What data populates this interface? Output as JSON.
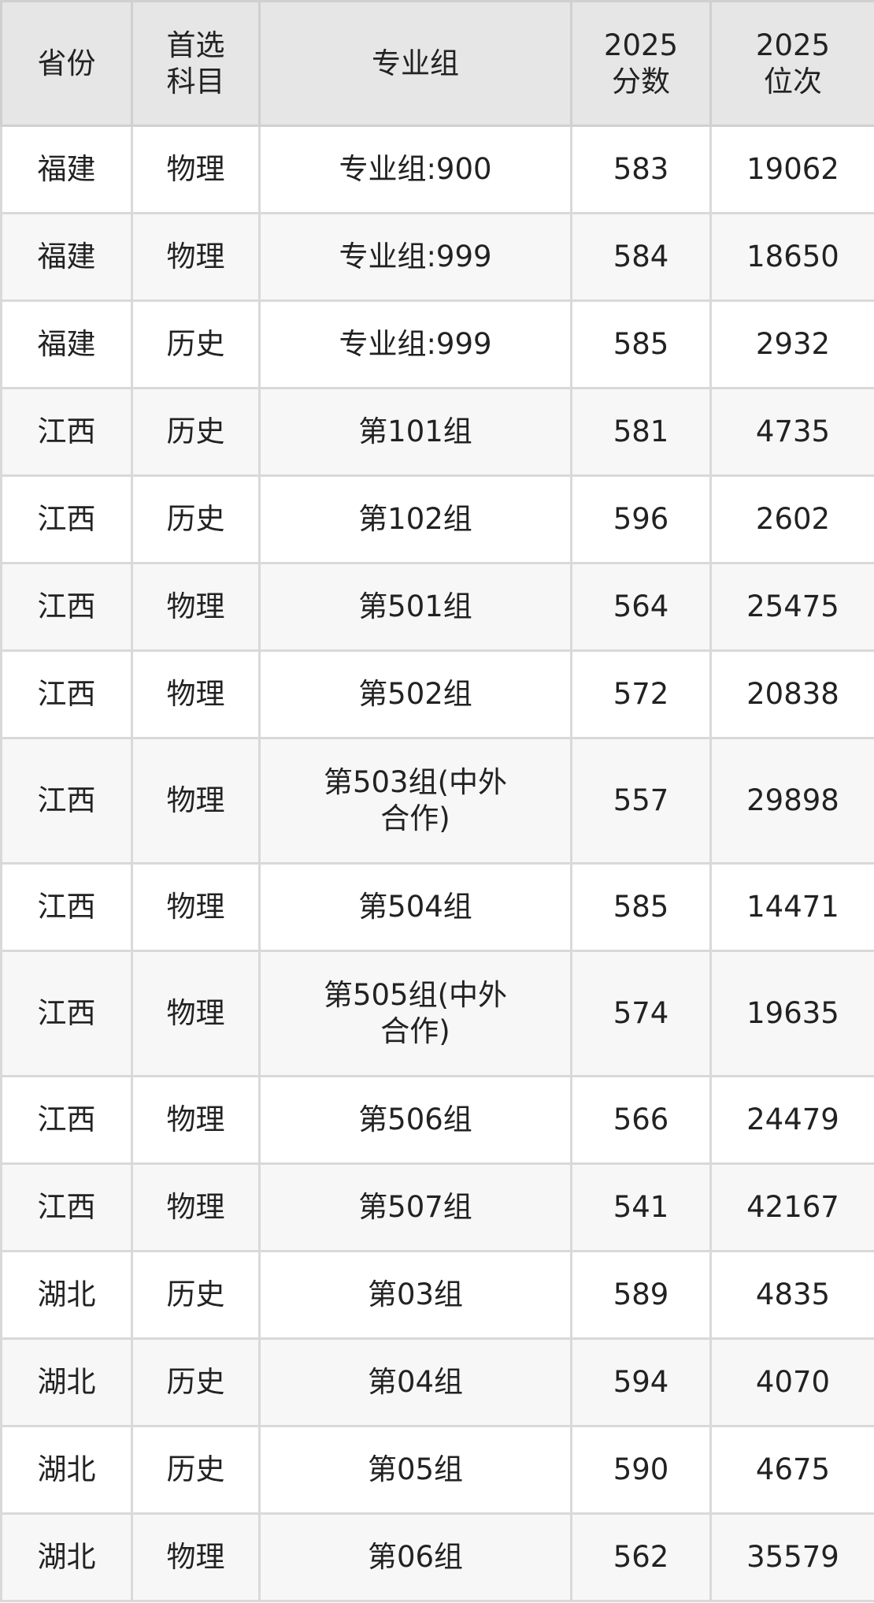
{
  "headers": [
    "省份",
    "首选科目",
    "专业组",
    "2025分数",
    "2025位次"
  ],
  "header_lines": [
    [
      "省份"
    ],
    [
      "首选",
      "科目"
    ],
    [
      "专业组"
    ],
    [
      "2025",
      "分数"
    ],
    [
      "2025",
      "位次"
    ]
  ],
  "rows": [
    {
      "province": "福建",
      "subject": "物理",
      "group": "专业组:900",
      "score": "583",
      "rank": "19062"
    },
    {
      "province": "福建",
      "subject": "物理",
      "group": "专业组:999",
      "score": "584",
      "rank": "18650"
    },
    {
      "province": "福建",
      "subject": "历史",
      "group": "专业组:999",
      "score": "585",
      "rank": "2932"
    },
    {
      "province": "江西",
      "subject": "历史",
      "group": "第101组",
      "score": "581",
      "rank": "4735"
    },
    {
      "province": "江西",
      "subject": "历史",
      "group": "第102组",
      "score": "596",
      "rank": "2602"
    },
    {
      "province": "江西",
      "subject": "物理",
      "group": "第501组",
      "score": "564",
      "rank": "25475"
    },
    {
      "province": "江西",
      "subject": "物理",
      "group": "第502组",
      "score": "572",
      "rank": "20838"
    },
    {
      "province": "江西",
      "subject": "物理",
      "group": "第503组(中外合作)",
      "score": "557",
      "rank": "29898"
    },
    {
      "province": "江西",
      "subject": "物理",
      "group": "第504组",
      "score": "585",
      "rank": "14471"
    },
    {
      "province": "江西",
      "subject": "物理",
      "group": "第505组(中外合作)",
      "score": "574",
      "rank": "19635"
    },
    {
      "province": "江西",
      "subject": "物理",
      "group": "第506组",
      "score": "566",
      "rank": "24479"
    },
    {
      "province": "江西",
      "subject": "物理",
      "group": "第507组",
      "score": "541",
      "rank": "42167"
    },
    {
      "province": "湖北",
      "subject": "历史",
      "group": "第03组",
      "score": "589",
      "rank": "4835"
    },
    {
      "province": "湖北",
      "subject": "历史",
      "group": "第04组",
      "score": "594",
      "rank": "4070"
    },
    {
      "province": "湖北",
      "subject": "历史",
      "group": "第05组",
      "score": "590",
      "rank": "4675"
    },
    {
      "province": "湖北",
      "subject": "物理",
      "group": "第06组",
      "score": "562",
      "rank": "35579"
    }
  ]
}
